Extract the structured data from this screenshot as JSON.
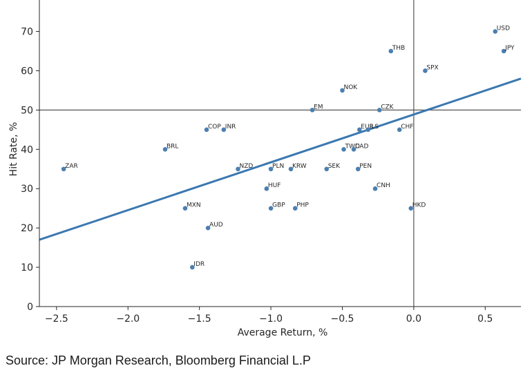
{
  "source_note": "Source: JP Morgan Research, Bloomberg Financial L.P",
  "chart_data": {
    "type": "scatter",
    "xlabel": "Average Return, %",
    "ylabel": "Hit Rate, %",
    "xlim": [
      -2.62,
      0.75
    ],
    "ylim": [
      0,
      78
    ],
    "x_ticks": [
      -2.5,
      -2.0,
      -1.5,
      -1.0,
      -0.5,
      0.0,
      0.5
    ],
    "x_tick_labels": [
      "−2.5",
      "−2.0",
      "−1.5",
      "−1.0",
      "−0.5",
      "0.0",
      "0.5"
    ],
    "y_ticks": [
      0,
      10,
      20,
      30,
      40,
      50,
      60,
      70
    ],
    "y_tick_labels": [
      "0",
      "10",
      "20",
      "30",
      "40",
      "50",
      "60",
      "70"
    ],
    "reference_lines": {
      "x": 0,
      "y": 50
    },
    "trend_line": {
      "x": [
        -2.62,
        0.75
      ],
      "y": [
        17,
        58
      ]
    },
    "colors": {
      "points": "#4c7fb0",
      "trend": "#3a78b0",
      "reference": "#555555"
    },
    "points": [
      {
        "label": "USD",
        "x": 0.57,
        "y": 70
      },
      {
        "label": "JPY",
        "x": 0.63,
        "y": 65
      },
      {
        "label": "THB",
        "x": -0.16,
        "y": 65
      },
      {
        "label": "SPX",
        "x": 0.08,
        "y": 60
      },
      {
        "label": "NOK",
        "x": -0.5,
        "y": 55
      },
      {
        "label": "EM",
        "x": -0.71,
        "y": 50
      },
      {
        "label": "CZK",
        "x": -0.24,
        "y": 50
      },
      {
        "label": "COP",
        "x": -1.45,
        "y": 45
      },
      {
        "label": "INR",
        "x": -1.33,
        "y": 45
      },
      {
        "label": "EUR",
        "x": -0.38,
        "y": 45
      },
      {
        "label": "ILS",
        "x": -0.32,
        "y": 45
      },
      {
        "label": "CHF",
        "x": -0.1,
        "y": 45
      },
      {
        "label": "BRL",
        "x": -1.74,
        "y": 40
      },
      {
        "label": "TWD",
        "x": -0.49,
        "y": 40
      },
      {
        "label": "CAD",
        "x": -0.42,
        "y": 40
      },
      {
        "label": "ZAR",
        "x": -2.45,
        "y": 35
      },
      {
        "label": "NZD",
        "x": -1.23,
        "y": 35
      },
      {
        "label": "PLN",
        "x": -1.0,
        "y": 35
      },
      {
        "label": "KRW",
        "x": -0.86,
        "y": 35
      },
      {
        "label": "SEK",
        "x": -0.61,
        "y": 35
      },
      {
        "label": "PEN",
        "x": -0.39,
        "y": 35
      },
      {
        "label": "HUF",
        "x": -1.03,
        "y": 30
      },
      {
        "label": "CNH",
        "x": -0.27,
        "y": 30
      },
      {
        "label": "MXN",
        "x": -1.6,
        "y": 25
      },
      {
        "label": "GBP",
        "x": -1.0,
        "y": 25
      },
      {
        "label": "PHP",
        "x": -0.83,
        "y": 25
      },
      {
        "label": "HKD",
        "x": -0.02,
        "y": 25
      },
      {
        "label": "AUD",
        "x": -1.44,
        "y": 20
      },
      {
        "label": "IDR",
        "x": -1.55,
        "y": 10
      }
    ]
  }
}
